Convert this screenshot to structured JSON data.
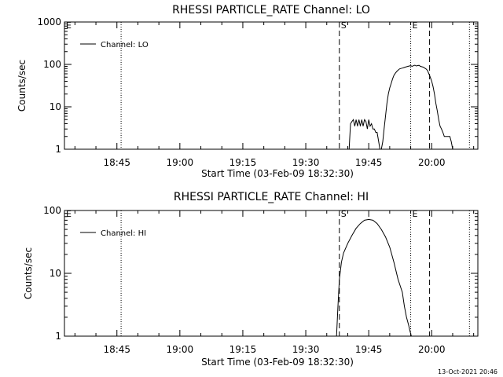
{
  "footer_timestamp": "13-Oct-2021 20:46",
  "chart_data": [
    {
      "type": "line",
      "title": "RHESSI PARTICLE_RATE Channel: LO",
      "xlabel": "Start Time (03-Feb-09 18:32:30)",
      "ylabel": "Counts/sec",
      "xscale": "time",
      "yscale": "log",
      "xlim": [
        "18:32:30",
        "20:11:00"
      ],
      "ylim": [
        1,
        1000
      ],
      "x_ticks": [
        "18:45",
        "19:00",
        "19:15",
        "19:30",
        "19:45",
        "20:00"
      ],
      "y_ticks": [
        "1",
        "10",
        "100",
        "1000"
      ],
      "legend": {
        "position": "top-left",
        "entries": [
          "Channel: LO"
        ]
      },
      "markers": [
        {
          "label": "E",
          "time": "18:32:30",
          "style": "dotted"
        },
        {
          "label": "",
          "time": "18:46:00",
          "style": "dotted"
        },
        {
          "label": "S",
          "time": "19:38:00",
          "style": "dashed"
        },
        {
          "label": "E",
          "time": "19:55:00",
          "style": "dotted"
        },
        {
          "label": "",
          "time": "19:59:30",
          "style": "dashed"
        },
        {
          "label": "",
          "time": "20:09:00",
          "style": "dotted"
        }
      ],
      "series": [
        {
          "name": "Channel: LO",
          "x": [
            "19:40:00",
            "19:40:20",
            "19:40:40",
            "19:41:00",
            "19:41:20",
            "19:41:40",
            "19:42:00",
            "19:42:20",
            "19:42:40",
            "19:43:00",
            "19:43:20",
            "19:43:40",
            "19:44:00",
            "19:44:20",
            "19:44:40",
            "19:45:00",
            "19:45:20",
            "19:45:40",
            "19:46:00",
            "19:46:20",
            "19:46:40",
            "19:47:00",
            "19:47:20",
            "19:47:40",
            "19:48:00",
            "19:48:20",
            "19:48:40",
            "19:49:00",
            "19:49:20",
            "19:49:40",
            "19:50:00",
            "19:50:20",
            "19:50:40",
            "19:51:00",
            "19:51:20",
            "19:51:40",
            "19:52:00",
            "19:52:20",
            "19:52:40",
            "19:53:00",
            "19:53:20",
            "19:53:40",
            "19:54:00",
            "19:54:20",
            "19:54:40",
            "19:55:00",
            "19:55:20",
            "19:55:40",
            "19:56:00",
            "19:56:20",
            "19:56:40",
            "19:57:00",
            "19:57:20",
            "19:57:40",
            "19:58:00",
            "19:58:20",
            "19:58:40",
            "19:59:00",
            "19:59:20",
            "19:59:40",
            "20:00:00",
            "20:00:20",
            "20:00:40",
            "20:01:00",
            "20:01:20",
            "20:01:40",
            "20:02:00",
            "20:02:20",
            "20:02:40",
            "20:03:00",
            "20:03:20",
            "20:03:40",
            "20:04:00",
            "20:04:20",
            "20:04:40",
            "20:05:00",
            "20:05:20"
          ],
          "y": [
            1,
            1,
            4,
            4.5,
            5,
            3.5,
            5,
            3.5,
            5,
            3.5,
            5,
            3.5,
            5,
            4.5,
            3,
            5,
            3.5,
            4,
            3,
            3,
            2.5,
            2.5,
            1.6,
            1,
            1,
            1.5,
            3,
            6,
            12,
            20,
            28,
            35,
            45,
            55,
            62,
            68,
            73,
            78,
            80,
            82,
            84,
            86,
            88,
            90,
            92,
            93,
            90,
            93,
            96,
            92,
            94,
            95,
            90,
            88,
            86,
            82,
            78,
            72,
            60,
            50,
            40,
            30,
            20,
            12,
            8,
            5,
            3.5,
            3,
            2.5,
            2,
            2,
            2,
            2,
            2,
            1.5,
            1,
            1
          ]
        }
      ]
    },
    {
      "type": "line",
      "title": "RHESSI PARTICLE_RATE Channel: HI",
      "xlabel": "Start Time (03-Feb-09 18:32:30)",
      "ylabel": "Counts/sec",
      "xscale": "time",
      "yscale": "log",
      "xlim": [
        "18:32:30",
        "20:11:00"
      ],
      "ylim": [
        1,
        100
      ],
      "x_ticks": [
        "18:45",
        "19:00",
        "19:15",
        "19:30",
        "19:45",
        "20:00"
      ],
      "y_ticks": [
        "1",
        "10",
        "100"
      ],
      "legend": {
        "position": "top-left",
        "entries": [
          "Channel: HI"
        ]
      },
      "markers": [
        {
          "label": "E",
          "time": "18:32:30",
          "style": "dotted"
        },
        {
          "label": "",
          "time": "18:46:00",
          "style": "dotted"
        },
        {
          "label": "S",
          "time": "19:38:00",
          "style": "dashed"
        },
        {
          "label": "E",
          "time": "19:55:00",
          "style": "dotted"
        },
        {
          "label": "",
          "time": "19:59:30",
          "style": "dashed"
        },
        {
          "label": "",
          "time": "20:09:00",
          "style": "dotted"
        }
      ],
      "series": [
        {
          "name": "Channel: HI",
          "x": [
            "19:37:20",
            "19:37:40",
            "19:38:00",
            "19:38:30",
            "19:39:00",
            "19:40:00",
            "19:41:00",
            "19:42:00",
            "19:43:00",
            "19:44:00",
            "19:45:00",
            "19:46:00",
            "19:47:00",
            "19:48:00",
            "19:49:00",
            "19:50:00",
            "19:51:00",
            "19:52:00",
            "19:53:00",
            "19:53:30",
            "19:54:00",
            "19:54:30",
            "19:54:50",
            "19:55:10"
          ],
          "y": [
            1,
            3,
            8,
            15,
            21,
            30,
            40,
            52,
            62,
            70,
            72,
            70,
            62,
            50,
            38,
            26,
            15,
            8,
            5,
            3,
            2,
            1.5,
            1.2,
            1
          ]
        }
      ]
    }
  ]
}
